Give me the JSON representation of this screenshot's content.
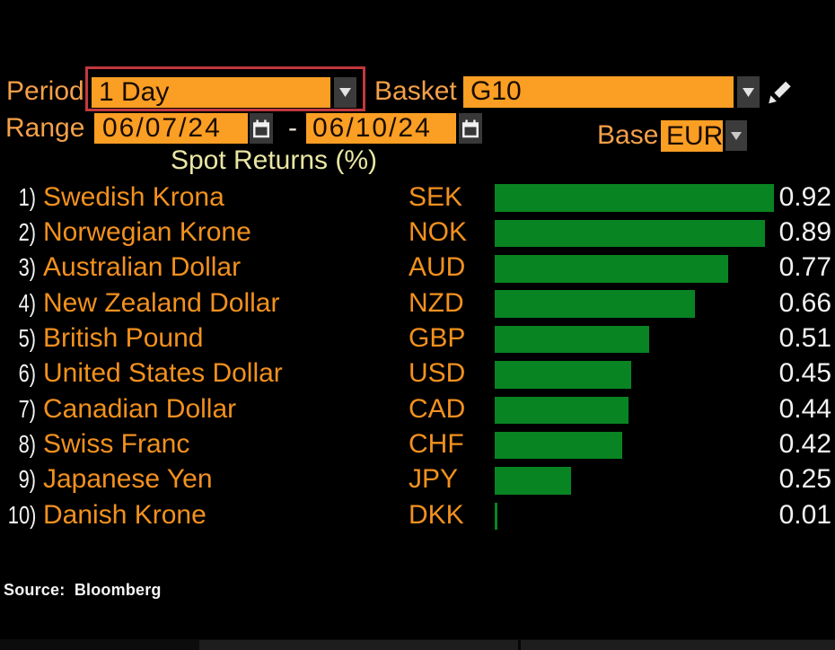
{
  "controls": {
    "period": {
      "label": "Period",
      "value": "1 Day",
      "highlighted": true
    },
    "basket": {
      "label": "Basket",
      "value": "G10"
    },
    "range": {
      "label": "Range",
      "start_date": "06/07/24",
      "separator": "-",
      "end_date": "06/10/24"
    },
    "base": {
      "label": "Base",
      "value": "EUR"
    }
  },
  "chart_data": {
    "type": "bar",
    "title": "Spot Returns (%)",
    "orientation": "horizontal",
    "ranks": [
      "1)",
      "2)",
      "3)",
      "4)",
      "5)",
      "6)",
      "7)",
      "8)",
      "9)",
      "10)"
    ],
    "categories": [
      "Swedish Krona",
      "Norwegian Krone",
      "Australian Dollar",
      "New Zealand Dollar",
      "British Pound",
      "United States Dollar",
      "Canadian Dollar",
      "Swiss Franc",
      "Japanese Yen",
      "Danish Krone"
    ],
    "tickers": [
      "SEK",
      "NOK",
      "AUD",
      "NZD",
      "GBP",
      "USD",
      "CAD",
      "CHF",
      "JPY",
      "DKK"
    ],
    "values": [
      0.92,
      0.89,
      0.77,
      0.66,
      0.51,
      0.45,
      0.44,
      0.42,
      0.25,
      0.01
    ],
    "value_labels": [
      "0.92",
      "0.89",
      "0.77",
      "0.66",
      "0.51",
      "0.45",
      "0.44",
      "0.42",
      "0.25",
      "0.01"
    ],
    "xlim": [
      0,
      1.0
    ],
    "grid": false,
    "legend": false,
    "bar_color": "#088422"
  },
  "footer": {
    "source": "Source:  Bloomberg"
  },
  "colors": {
    "background": "#000000",
    "label_amber": "#f4a049",
    "row_amber": "#f2911e",
    "field_orange": "#fb9e24",
    "field_text": "#180c00",
    "highlight_red": "#c2383f",
    "bar_green": "#088422",
    "title_yellow": "#e9e7a3",
    "value_white": "#f2f2f2",
    "button_gray": "#3b3b3b",
    "arrow_gray": "#d8d8d8",
    "dash_white": "#eee6da"
  },
  "icons": {
    "period_dropdown": "chevron-down-icon",
    "basket_dropdown": "chevron-down-icon",
    "base_dropdown": "chevron-down-icon",
    "range_start": "calendar-icon",
    "range_end": "calendar-icon",
    "basket_edit": "pencil-icon"
  }
}
